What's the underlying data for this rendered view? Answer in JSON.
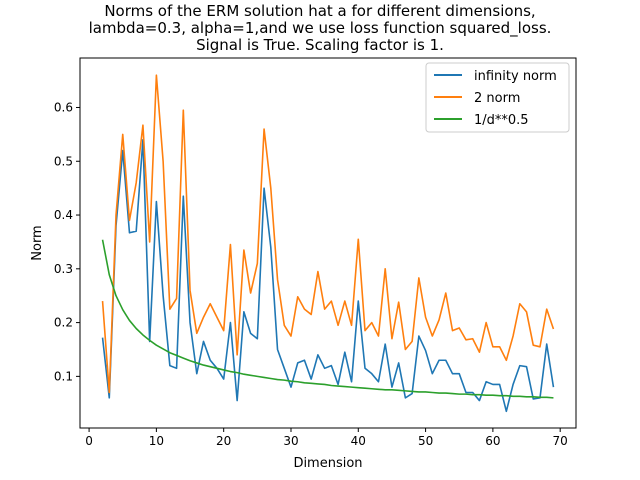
{
  "chart_data": {
    "type": "line",
    "title_lines": [
      "Norms of the ERM solution hat a for different dimensions,",
      "lambda=0.3, alpha=1,and we use loss function squared_loss.",
      "Signal is True. Scaling factor is 1."
    ],
    "xlabel": "Dimension",
    "ylabel": "Norm",
    "xlim": [
      -1.35,
      72.35
    ],
    "ylim": [
      0.004,
      0.692
    ],
    "xticks": [
      0,
      10,
      20,
      30,
      40,
      50,
      60,
      70
    ],
    "yticks": [
      0.1,
      0.2,
      0.3,
      0.4,
      0.5,
      0.6
    ],
    "legend_position": "top-right",
    "x": [
      2,
      3,
      4,
      5,
      6,
      7,
      8,
      9,
      10,
      11,
      12,
      13,
      14,
      15,
      16,
      17,
      18,
      19,
      20,
      21,
      22,
      23,
      24,
      25,
      26,
      27,
      28,
      29,
      30,
      31,
      32,
      33,
      34,
      35,
      36,
      37,
      38,
      39,
      40,
      41,
      42,
      43,
      44,
      45,
      46,
      47,
      48,
      49,
      50,
      51,
      52,
      53,
      54,
      55,
      56,
      57,
      58,
      59,
      60,
      61,
      62,
      63,
      64,
      65,
      66,
      67,
      68,
      69
    ],
    "series": [
      {
        "name": "infinity norm",
        "color": "#1f77b4",
        "values": [
          0.172,
          0.06,
          0.38,
          0.52,
          0.367,
          0.37,
          0.54,
          0.165,
          0.425,
          0.25,
          0.12,
          0.115,
          0.435,
          0.2,
          0.105,
          0.165,
          0.13,
          0.115,
          0.095,
          0.2,
          0.055,
          0.22,
          0.18,
          0.17,
          0.45,
          0.34,
          0.15,
          0.115,
          0.08,
          0.125,
          0.13,
          0.095,
          0.14,
          0.115,
          0.12,
          0.085,
          0.145,
          0.09,
          0.24,
          0.115,
          0.105,
          0.09,
          0.16,
          0.08,
          0.125,
          0.06,
          0.068,
          0.175,
          0.148,
          0.105,
          0.13,
          0.13,
          0.105,
          0.105,
          0.07,
          0.07,
          0.055,
          0.09,
          0.085,
          0.085,
          0.035,
          0.085,
          0.12,
          0.118,
          0.058,
          0.06,
          0.16,
          0.08
        ]
      },
      {
        "name": "2 norm",
        "color": "#ff7f0e",
        "values": [
          0.24,
          0.07,
          0.4,
          0.55,
          0.39,
          0.46,
          0.567,
          0.35,
          0.66,
          0.5,
          0.225,
          0.245,
          0.595,
          0.26,
          0.18,
          0.21,
          0.235,
          0.21,
          0.185,
          0.345,
          0.14,
          0.335,
          0.255,
          0.31,
          0.56,
          0.45,
          0.28,
          0.195,
          0.175,
          0.248,
          0.225,
          0.215,
          0.295,
          0.225,
          0.24,
          0.195,
          0.24,
          0.195,
          0.355,
          0.185,
          0.2,
          0.175,
          0.3,
          0.17,
          0.238,
          0.15,
          0.165,
          0.283,
          0.21,
          0.175,
          0.205,
          0.255,
          0.185,
          0.19,
          0.168,
          0.17,
          0.145,
          0.2,
          0.155,
          0.155,
          0.13,
          0.175,
          0.235,
          0.22,
          0.158,
          0.155,
          0.225,
          0.188
        ]
      },
      {
        "name": "1/d**0.5",
        "color": "#2ca02c",
        "values": [
          0.354,
          0.289,
          0.25,
          0.224,
          0.204,
          0.189,
          0.177,
          0.167,
          0.158,
          0.151,
          0.144,
          0.139,
          0.134,
          0.129,
          0.125,
          0.121,
          0.118,
          0.115,
          0.112,
          0.109,
          0.107,
          0.104,
          0.102,
          0.1,
          0.098,
          0.096,
          0.094,
          0.093,
          0.091,
          0.09,
          0.088,
          0.087,
          0.086,
          0.085,
          0.083,
          0.082,
          0.081,
          0.08,
          0.079,
          0.078,
          0.077,
          0.076,
          0.075,
          0.075,
          0.074,
          0.073,
          0.072,
          0.071,
          0.071,
          0.07,
          0.069,
          0.069,
          0.068,
          0.067,
          0.067,
          0.066,
          0.066,
          0.065,
          0.065,
          0.064,
          0.064,
          0.063,
          0.063,
          0.062,
          0.062,
          0.061,
          0.061,
          0.06
        ]
      }
    ]
  }
}
